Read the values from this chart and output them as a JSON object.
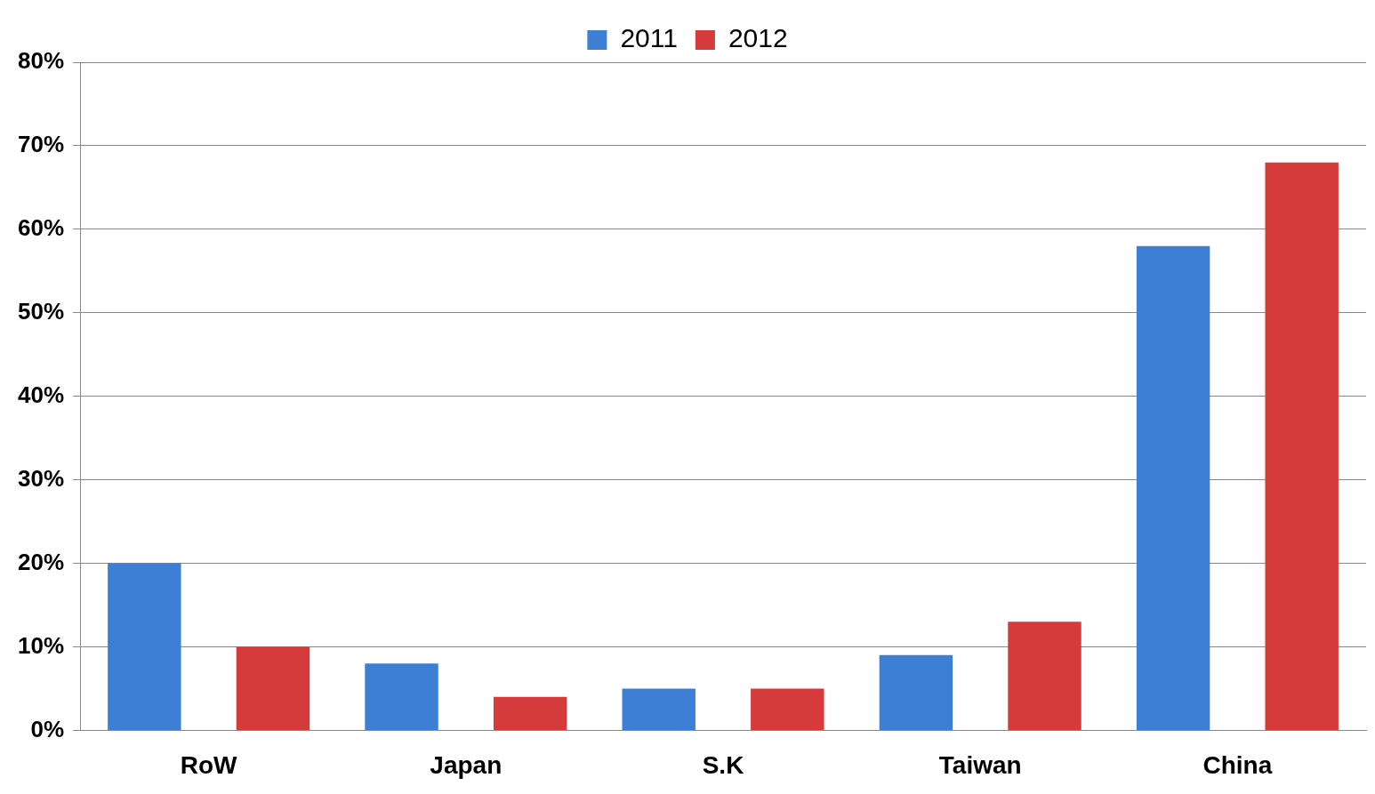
{
  "chart_data": {
    "type": "bar",
    "categories": [
      "RoW",
      "Japan",
      "S.K",
      "Taiwan",
      "China"
    ],
    "series": [
      {
        "name": "2011",
        "color": "#3d7fd4",
        "values": [
          20,
          8,
          5,
          9,
          58
        ]
      },
      {
        "name": "2012",
        "color": "#d63b3b",
        "values": [
          10,
          4,
          5,
          13,
          68
        ]
      }
    ],
    "ylim": [
      0,
      80
    ],
    "yticks": [
      {
        "value": 0,
        "label": "0%"
      },
      {
        "value": 10,
        "label": "10%"
      },
      {
        "value": 20,
        "label": "20%"
      },
      {
        "value": 30,
        "label": "30%"
      },
      {
        "value": 40,
        "label": "40%"
      },
      {
        "value": 50,
        "label": "50%"
      },
      {
        "value": 60,
        "label": "60%"
      },
      {
        "value": 70,
        "label": "70%"
      },
      {
        "value": 80,
        "label": "80%"
      }
    ],
    "grid": "y",
    "legend": "top"
  }
}
